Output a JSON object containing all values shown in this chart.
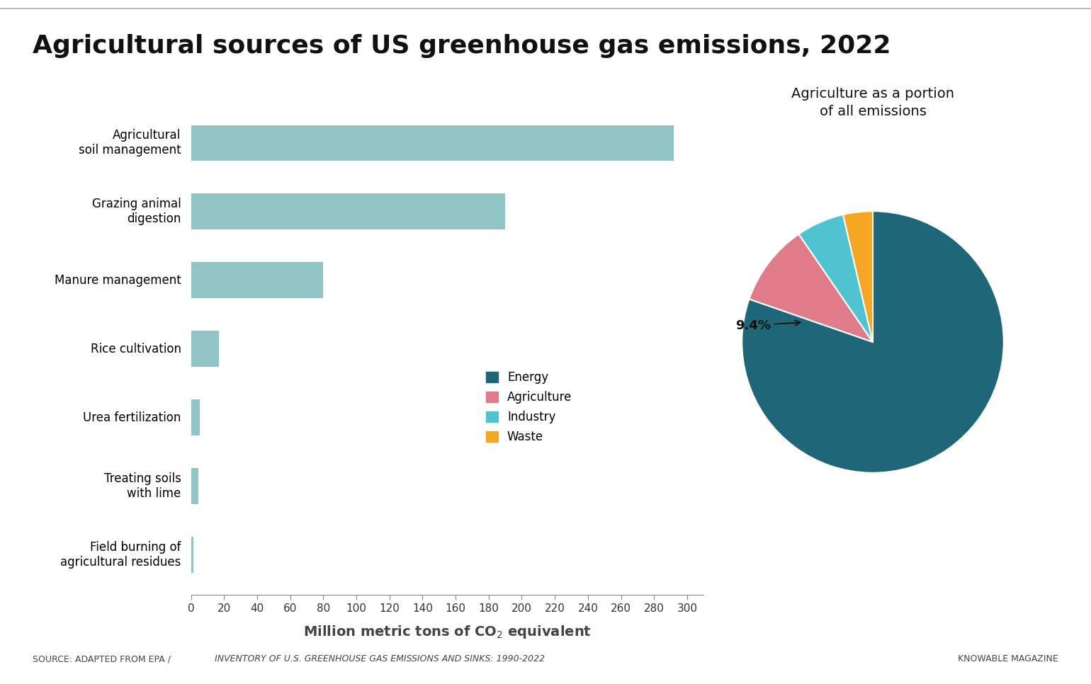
{
  "title": "Agricultural sources of US greenhouse gas emissions, 2022",
  "title_fontsize": 26,
  "bar_categories": [
    "Field burning of\nagricultural residues",
    "Treating soils\nwith lime",
    "Urea fertilization",
    "Rice cultivation",
    "Manure management",
    "Grazing animal\ndigestion",
    "Agricultural\nsoil management"
  ],
  "bar_values": [
    1.5,
    4.5,
    5.5,
    17,
    80,
    190,
    292
  ],
  "bar_color": "#91C4C4",
  "xlim": [
    0,
    310
  ],
  "xticks": [
    0,
    20,
    40,
    60,
    80,
    100,
    120,
    140,
    160,
    180,
    200,
    220,
    240,
    260,
    280,
    300
  ],
  "xlabel_fontsize": 14,
  "pie_title": "Agriculture as a portion\nof all emissions",
  "pie_title_fontsize": 14,
  "pie_values": [
    74.7,
    9.4,
    5.5,
    3.4
  ],
  "pie_labels": [
    "Energy",
    "Agriculture",
    "Industry",
    "Waste"
  ],
  "pie_colors": [
    "#1F6678",
    "#E07B8A",
    "#4FC3D0",
    "#F5A623"
  ],
  "legend_labels": [
    "Energy",
    "Agriculture",
    "Industry",
    "Waste"
  ],
  "source_fontsize": 9,
  "background_color": "#ffffff"
}
